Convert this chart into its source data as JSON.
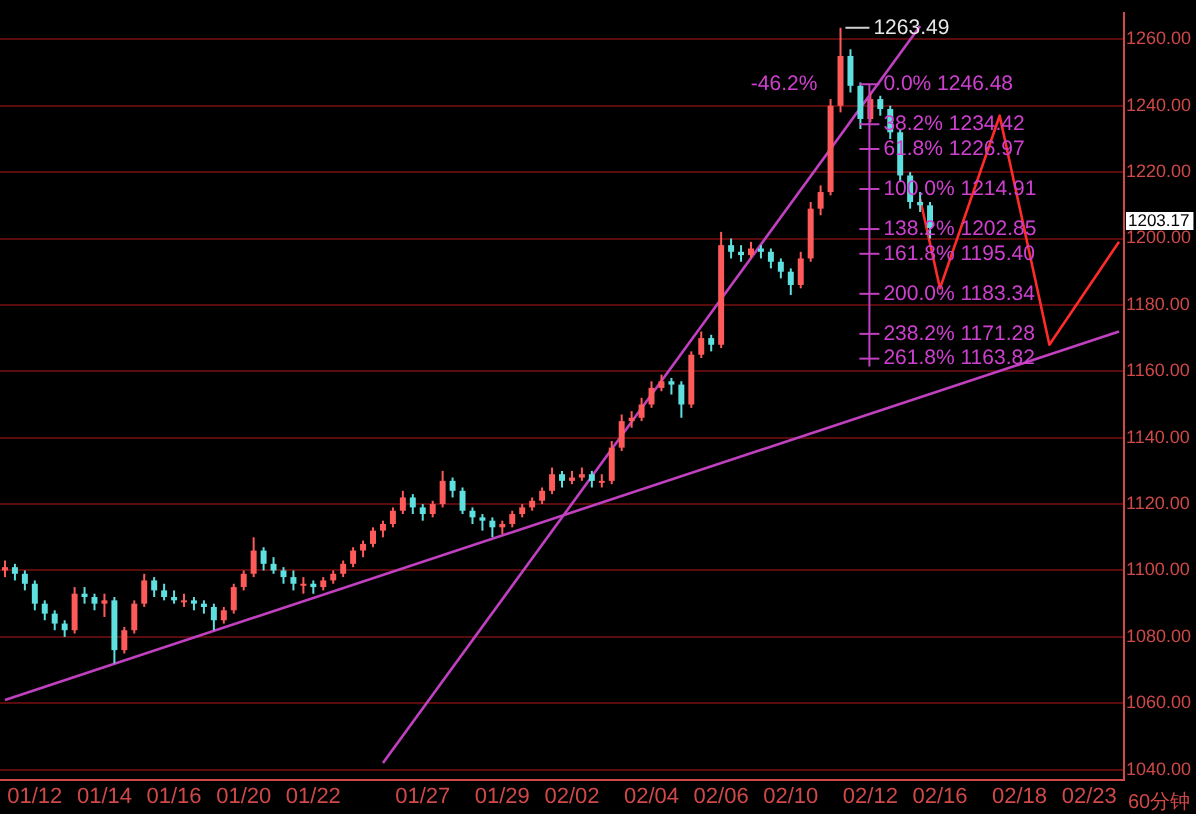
{
  "chart_data": {
    "type": "candlestick",
    "categories": [
      null,
      null,
      null,
      "01/12",
      null,
      null,
      null,
      null,
      null,
      null,
      "01/14",
      null,
      null,
      null,
      null,
      null,
      null,
      "01/16",
      null,
      null,
      null,
      null,
      null,
      null,
      "01/20",
      null,
      null,
      null,
      null,
      null,
      null,
      "01/22",
      null,
      null,
      null,
      null,
      null,
      null,
      null,
      null,
      null,
      null,
      "01/27",
      null,
      null,
      null,
      null,
      null,
      null,
      null,
      "01/29",
      null,
      null,
      null,
      null,
      null,
      null,
      "02/02",
      null,
      null,
      null,
      null,
      null,
      null,
      null,
      "02/04",
      null,
      null,
      null,
      null,
      null,
      null,
      "02/06",
      null,
      null,
      null,
      null,
      null,
      null,
      "02/10",
      null,
      null,
      null,
      null,
      null,
      null,
      null,
      "02/12",
      null,
      null,
      null,
      null,
      null,
      null,
      "02/16",
      null,
      null,
      null,
      null,
      null,
      null,
      null,
      "02/18",
      null,
      null,
      null,
      null,
      null,
      null,
      "02/23",
      null,
      null,
      null
    ],
    "ohlc": [
      [
        1100,
        1103,
        1098,
        1101
      ],
      [
        1101,
        1102,
        1097,
        1099
      ],
      [
        1099,
        1100,
        1094,
        1096
      ],
      [
        1096,
        1097,
        1088,
        1090
      ],
      [
        1090,
        1091,
        1085,
        1087
      ],
      [
        1087,
        1088,
        1082,
        1084
      ],
      [
        1084,
        1085,
        1080,
        1082
      ],
      [
        1082,
        1095,
        1081,
        1093
      ],
      [
        1093,
        1095,
        1090,
        1092
      ],
      [
        1092,
        1093,
        1088,
        1090
      ],
      [
        1090,
        1093,
        1086,
        1091
      ],
      [
        1091,
        1092,
        1072,
        1076
      ],
      [
        1076,
        1083,
        1075,
        1082
      ],
      [
        1082,
        1091,
        1081,
        1090
      ],
      [
        1090,
        1099,
        1089,
        1097
      ],
      [
        1097,
        1098,
        1092,
        1094
      ],
      [
        1094,
        1096,
        1091,
        1092
      ],
      [
        1092,
        1094,
        1090,
        1091
      ],
      [
        1091,
        1093,
        1089,
        1091
      ],
      [
        1091,
        1092,
        1088,
        1090
      ],
      [
        1090,
        1091,
        1087,
        1089
      ],
      [
        1089,
        1090,
        1082,
        1085
      ],
      [
        1085,
        1089,
        1084,
        1088
      ],
      [
        1088,
        1096,
        1087,
        1095
      ],
      [
        1095,
        1100,
        1094,
        1099
      ],
      [
        1099,
        1110,
        1098,
        1106
      ],
      [
        1106,
        1107,
        1100,
        1102
      ],
      [
        1102,
        1104,
        1099,
        1100
      ],
      [
        1100,
        1101,
        1096,
        1098
      ],
      [
        1098,
        1100,
        1094,
        1096
      ],
      [
        1096,
        1098,
        1093,
        1096
      ],
      [
        1096,
        1097,
        1093,
        1095
      ],
      [
        1095,
        1098,
        1094,
        1097
      ],
      [
        1097,
        1100,
        1096,
        1099
      ],
      [
        1099,
        1103,
        1098,
        1102
      ],
      [
        1102,
        1107,
        1101,
        1106
      ],
      [
        1106,
        1109,
        1104,
        1108
      ],
      [
        1108,
        1113,
        1107,
        1112
      ],
      [
        1112,
        1115,
        1110,
        1114
      ],
      [
        1114,
        1119,
        1113,
        1118
      ],
      [
        1118,
        1124,
        1117,
        1122
      ],
      [
        1122,
        1123,
        1117,
        1119
      ],
      [
        1119,
        1120,
        1115,
        1117
      ],
      [
        1117,
        1121,
        1116,
        1120
      ],
      [
        1120,
        1130,
        1119,
        1127
      ],
      [
        1127,
        1128,
        1122,
        1124
      ],
      [
        1124,
        1125,
        1117,
        1118
      ],
      [
        1118,
        1119,
        1114,
        1116
      ],
      [
        1116,
        1117,
        1112,
        1115
      ],
      [
        1115,
        1116,
        1110,
        1113
      ],
      [
        1113,
        1115,
        1111,
        1114
      ],
      [
        1114,
        1118,
        1113,
        1117
      ],
      [
        1117,
        1120,
        1116,
        1119
      ],
      [
        1119,
        1122,
        1118,
        1121
      ],
      [
        1121,
        1125,
        1120,
        1124
      ],
      [
        1124,
        1131,
        1123,
        1129
      ],
      [
        1129,
        1130,
        1125,
        1127
      ],
      [
        1127,
        1130,
        1126,
        1128
      ],
      [
        1128,
        1131,
        1127,
        1129
      ],
      [
        1129,
        1130,
        1125,
        1127
      ],
      [
        1127,
        1129,
        1125,
        1127
      ],
      [
        1127,
        1139,
        1126,
        1137
      ],
      [
        1137,
        1147,
        1136,
        1145
      ],
      [
        1145,
        1148,
        1143,
        1146
      ],
      [
        1146,
        1152,
        1145,
        1150
      ],
      [
        1150,
        1157,
        1149,
        1155
      ],
      [
        1155,
        1159,
        1154,
        1157
      ],
      [
        1157,
        1158,
        1153,
        1156
      ],
      [
        1156,
        1157,
        1146,
        1150
      ],
      [
        1150,
        1166,
        1149,
        1165
      ],
      [
        1165,
        1172,
        1164,
        1170
      ],
      [
        1170,
        1171,
        1166,
        1168
      ],
      [
        1168,
        1202,
        1167,
        1198
      ],
      [
        1198,
        1200,
        1194,
        1196
      ],
      [
        1196,
        1198,
        1193,
        1195
      ],
      [
        1195,
        1199,
        1194,
        1197
      ],
      [
        1197,
        1198,
        1194,
        1196
      ],
      [
        1196,
        1197,
        1191,
        1193
      ],
      [
        1193,
        1194,
        1188,
        1190
      ],
      [
        1190,
        1191,
        1183,
        1186
      ],
      [
        1186,
        1196,
        1185,
        1194
      ],
      [
        1194,
        1211,
        1193,
        1209
      ],
      [
        1209,
        1216,
        1207,
        1214
      ],
      [
        1214,
        1242,
        1213,
        1240
      ],
      [
        1240,
        1263.49,
        1238,
        1255
      ],
      [
        1255,
        1257,
        1244,
        1246
      ],
      [
        1246,
        1247,
        1233,
        1236
      ],
      [
        1236,
        1244,
        1235,
        1242
      ],
      [
        1242,
        1243,
        1237,
        1239
      ],
      [
        1239,
        1240,
        1230,
        1232
      ],
      [
        1232,
        1233,
        1217,
        1219
      ],
      [
        1219,
        1220,
        1209,
        1211
      ],
      [
        1211,
        1214,
        1208,
        1210
      ],
      [
        1210,
        1211,
        1200,
        1203.17
      ],
      null,
      null,
      null,
      null,
      null,
      null,
      null,
      null,
      null,
      null,
      null,
      null,
      null,
      null,
      null,
      null,
      null,
      null,
      null
    ],
    "series": [
      {
        "type": "line",
        "color": "#c040c0",
        "values": [
          1061,
          null,
          null,
          null,
          null,
          null,
          null,
          null,
          null,
          null,
          null,
          null,
          null,
          null,
          null,
          null,
          null,
          null,
          null,
          null,
          null,
          null,
          null,
          null,
          null,
          null,
          null,
          null,
          null,
          null,
          null,
          null,
          null,
          null,
          null,
          null,
          null,
          null,
          null,
          null,
          null,
          null,
          null,
          null,
          null,
          null,
          null,
          null,
          null,
          null,
          null,
          null,
          null,
          null,
          null,
          null,
          null,
          null,
          null,
          null,
          null,
          null,
          null,
          null,
          null,
          null,
          null,
          null,
          null,
          null,
          null,
          null,
          null,
          null,
          null,
          null,
          null,
          null,
          null,
          null,
          null,
          null,
          null,
          null,
          null,
          null,
          null,
          null,
          null,
          null,
          null,
          null,
          null,
          null,
          null,
          null,
          null,
          null,
          null,
          null,
          null,
          null,
          null,
          null,
          null,
          null,
          null,
          null,
          null,
          null,
          null,
          null,
          1172
        ]
      },
      {
        "type": "line",
        "color": "#c040c0",
        "values": [
          null,
          null,
          null,
          null,
          null,
          null,
          null,
          null,
          null,
          null,
          null,
          null,
          null,
          null,
          null,
          null,
          null,
          null,
          null,
          null,
          null,
          null,
          null,
          null,
          null,
          null,
          null,
          null,
          null,
          null,
          null,
          null,
          null,
          null,
          null,
          null,
          null,
          null,
          1042,
          null,
          null,
          null,
          null,
          null,
          null,
          null,
          null,
          null,
          null,
          null,
          null,
          null,
          null,
          null,
          null,
          null,
          null,
          null,
          null,
          null,
          null,
          null,
          null,
          null,
          null,
          null,
          null,
          null,
          null,
          null,
          null,
          null,
          null,
          null,
          null,
          null,
          null,
          null,
          null,
          null,
          null,
          null,
          null,
          null,
          null,
          null,
          null,
          null,
          null,
          null,
          null,
          null,
          1264,
          null,
          null,
          null,
          null,
          null,
          null,
          null,
          null,
          null,
          null,
          null,
          null,
          null,
          null,
          null,
          null,
          null,
          null,
          null,
          null
        ]
      },
      {
        "type": "line",
        "color": "#ff2a2a",
        "values": [
          null,
          null,
          null,
          null,
          null,
          null,
          null,
          null,
          null,
          null,
          null,
          null,
          null,
          null,
          null,
          null,
          null,
          null,
          null,
          null,
          null,
          null,
          null,
          null,
          null,
          null,
          null,
          null,
          null,
          null,
          null,
          null,
          null,
          null,
          null,
          null,
          null,
          null,
          null,
          null,
          null,
          null,
          null,
          null,
          null,
          null,
          null,
          null,
          null,
          null,
          null,
          null,
          null,
          null,
          null,
          null,
          null,
          null,
          null,
          null,
          null,
          null,
          null,
          null,
          null,
          null,
          null,
          null,
          null,
          null,
          null,
          null,
          null,
          null,
          null,
          null,
          null,
          null,
          null,
          null,
          null,
          null,
          null,
          null,
          null,
          null,
          null,
          null,
          null,
          null,
          null,
          null,
          1212,
          null,
          1185,
          null,
          null,
          null,
          null,
          null,
          1237,
          null,
          null,
          null,
          null,
          1168,
          null,
          null,
          null,
          null,
          null,
          null,
          1199
        ]
      }
    ],
    "ylim": [
      1037,
      1268
    ],
    "yticks": [
      {
        "value": 1040,
        "label": "1040.00"
      },
      {
        "value": 1060,
        "label": "1060.00"
      },
      {
        "value": 1080,
        "label": "1080.00"
      },
      {
        "value": 1100,
        "label": "1100.00"
      },
      {
        "value": 1120,
        "label": "1120.00"
      },
      {
        "value": 1140,
        "label": "1140.00"
      },
      {
        "value": 1160,
        "label": "1160.00"
      },
      {
        "value": 1180,
        "label": "1180.00"
      },
      {
        "value": 1200,
        "label": "1200.00"
      },
      {
        "value": 1220,
        "label": "1220.00"
      },
      {
        "value": 1240,
        "label": "1240.00"
      },
      {
        "value": 1260,
        "label": "1260.00"
      }
    ],
    "grid": "y",
    "legend": false,
    "ref_lines": [
      {
        "axis": "y",
        "value": 1263.49,
        "label": "1263.49"
      },
      {
        "axis": "y",
        "value": 1246.48,
        "label": "0.0% 1246.48"
      },
      {
        "axis": "y",
        "value": 1234.42,
        "label": "38.2% 1234.42"
      },
      {
        "axis": "y",
        "value": 1226.97,
        "label": "61.8% 1226.97"
      },
      {
        "axis": "y",
        "value": 1214.91,
        "label": "100.0% 1214.91"
      },
      {
        "axis": "y",
        "value": 1202.85,
        "label": "138.2% 1202.85"
      },
      {
        "axis": "y",
        "value": 1195.4,
        "label": "161.8% 1195.40"
      },
      {
        "axis": "y",
        "value": 1183.34,
        "label": "200.0% 1183.34"
      },
      {
        "axis": "y",
        "value": 1171.28,
        "label": "238.2% 1171.28"
      },
      {
        "axis": "y",
        "value": 1163.82,
        "label": "261.8% 1163.82"
      }
    ],
    "annotations": [
      "-46.2%",
      "1203.17",
      "60分钟"
    ]
  }
}
